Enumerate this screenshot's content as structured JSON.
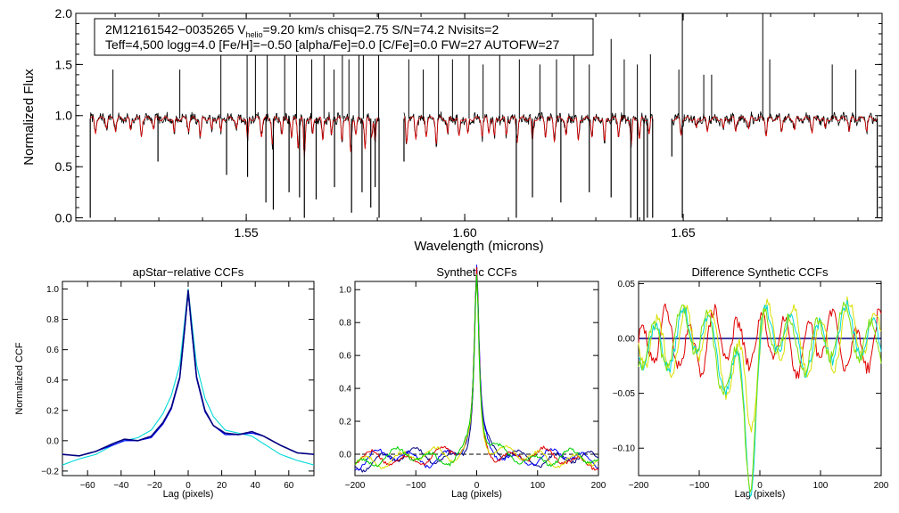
{
  "colors": {
    "black": "#000000",
    "red": "#e00000",
    "cyan": "#00d8d8",
    "navy": "#000080",
    "blue": "#0000ff",
    "green": "#00d000",
    "yellow": "#d8e000",
    "lime": "#80e000",
    "axis": "#000000"
  },
  "chart_data": [
    {
      "id": "spectrum",
      "type": "line",
      "title": "",
      "xlabel": "Wavelength (microns)",
      "ylabel": "Normalized Flux",
      "xlim": [
        1.511,
        1.6955
      ],
      "ylim": [
        -0.03,
        2.0
      ],
      "xticks": [
        1.55,
        1.6,
        1.65
      ],
      "xtick_labels": [
        "1.55",
        "1.60",
        "1.65"
      ],
      "yticks": [
        0.0,
        0.5,
        1.0,
        1.5,
        2.0
      ],
      "ytick_labels": [
        "0.0",
        "0.5",
        "1.0",
        "1.5",
        "2.0"
      ],
      "annotation": {
        "line1_parts": [
          "2M12161542−0035265  V",
          "helio",
          "=9.20 km/s  chisq=2.75  S/N=74.2  Nvisits=2"
        ],
        "line2": "Teff=4,500 logg=4.0 [Fe/H]=−0.50 [alpha/Fe]=0.0 [C/Fe]=0.0 FW=27 AUTOFW=27"
      },
      "chips_microns": [
        [
          1.5143,
          1.5804
        ],
        [
          1.5861,
          1.643
        ],
        [
          1.6474,
          1.6944
        ]
      ],
      "continuum": 0.97,
      "series": [
        {
          "name": "observed spectrum",
          "color": "black"
        },
        {
          "name": "synthetic model",
          "color": "red"
        }
      ],
      "absorption_lines": [
        [
          1.5155,
          0.25
        ],
        [
          1.518,
          0.14
        ],
        [
          1.5201,
          0.2
        ],
        [
          1.5235,
          0.22
        ],
        [
          1.526,
          0.3
        ],
        [
          1.5288,
          0.18
        ],
        [
          1.5335,
          0.28
        ],
        [
          1.5368,
          0.2
        ],
        [
          1.5395,
          0.34
        ],
        [
          1.5421,
          0.22
        ],
        [
          1.5442,
          0.26
        ],
        [
          1.5478,
          0.18
        ],
        [
          1.5503,
          0.4
        ],
        [
          1.5535,
          0.3
        ],
        [
          1.556,
          0.45
        ],
        [
          1.5582,
          0.28
        ],
        [
          1.5604,
          0.35
        ],
        [
          1.5619,
          0.5
        ],
        [
          1.5633,
          0.7
        ],
        [
          1.5652,
          0.3
        ],
        [
          1.5675,
          0.4
        ],
        [
          1.5695,
          0.32
        ],
        [
          1.5719,
          0.38
        ],
        [
          1.5739,
          0.6
        ],
        [
          1.5751,
          0.3
        ],
        [
          1.5772,
          0.55
        ],
        [
          1.5787,
          0.3
        ],
        [
          1.5795,
          0.45
        ],
        [
          1.5867,
          0.42
        ],
        [
          1.5888,
          0.35
        ],
        [
          1.5912,
          0.3
        ],
        [
          1.5935,
          0.42
        ],
        [
          1.5961,
          0.28
        ],
        [
          1.5987,
          0.35
        ],
        [
          1.6007,
          0.3
        ],
        [
          1.604,
          0.3
        ],
        [
          1.6055,
          0.25
        ],
        [
          1.6068,
          0.34
        ],
        [
          1.6095,
          0.3
        ],
        [
          1.612,
          0.4
        ],
        [
          1.6155,
          0.42
        ],
        [
          1.6185,
          0.3
        ],
        [
          1.6205,
          0.38
        ],
        [
          1.6232,
          0.3
        ],
        [
          1.626,
          0.42
        ],
        [
          1.6291,
          0.3
        ],
        [
          1.632,
          0.44
        ],
        [
          1.6352,
          0.3
        ],
        [
          1.6381,
          0.5
        ],
        [
          1.64,
          0.38
        ],
        [
          1.6422,
          0.3
        ],
        [
          1.6495,
          0.28
        ],
        [
          1.653,
          0.2
        ],
        [
          1.6555,
          0.25
        ],
        [
          1.6592,
          0.2
        ],
        [
          1.662,
          0.22
        ],
        [
          1.665,
          0.18
        ],
        [
          1.669,
          0.3
        ],
        [
          1.6725,
          0.22
        ],
        [
          1.6755,
          0.2
        ],
        [
          1.6795,
          0.24
        ],
        [
          1.6825,
          0.2
        ],
        [
          1.688,
          0.22
        ],
        [
          1.692,
          0.2
        ]
      ],
      "spikes_up": [
        [
          1.5195,
          1.45
        ],
        [
          1.5348,
          1.45
        ],
        [
          1.5442,
          1.6
        ],
        [
          1.5502,
          1.6
        ],
        [
          1.5521,
          1.9
        ],
        [
          1.5548,
          1.65
        ],
        [
          1.5588,
          1.7
        ],
        [
          1.5615,
          1.6
        ],
        [
          1.565,
          1.55
        ],
        [
          1.5678,
          1.75
        ],
        [
          1.5701,
          1.45
        ],
        [
          1.572,
          1.6
        ],
        [
          1.5735,
          1.55
        ],
        [
          1.5758,
          1.6
        ],
        [
          1.5768,
          1.7
        ],
        [
          1.5803,
          2.0
        ],
        [
          1.5872,
          1.55
        ],
        [
          1.5905,
          1.45
        ],
        [
          1.594,
          1.6
        ],
        [
          1.5972,
          1.55
        ],
        [
          1.601,
          1.8
        ],
        [
          1.6042,
          1.5
        ],
        [
          1.608,
          1.6
        ],
        [
          1.6125,
          1.55
        ],
        [
          1.6172,
          1.5
        ],
        [
          1.621,
          1.55
        ],
        [
          1.625,
          1.6
        ],
        [
          1.6285,
          1.5
        ],
        [
          1.6335,
          1.75
        ],
        [
          1.6365,
          1.55
        ],
        [
          1.6395,
          1.5
        ],
        [
          1.6425,
          1.6
        ],
        [
          1.649,
          1.45
        ],
        [
          1.6498,
          2.0
        ],
        [
          1.6547,
          1.4
        ],
        [
          1.6565,
          1.4
        ],
        [
          1.6682,
          2.0
        ],
        [
          1.6698,
          1.55
        ],
        [
          1.6841,
          1.5
        ],
        [
          1.6895,
          1.45
        ]
      ],
      "spikes_down": [
        [
          1.5143,
          0.0
        ],
        [
          1.5298,
          0.55
        ],
        [
          1.5455,
          0.42
        ],
        [
          1.5503,
          0.4
        ],
        [
          1.5545,
          0.15
        ],
        [
          1.5562,
          0.08
        ],
        [
          1.5598,
          0.25
        ],
        [
          1.5622,
          0.2
        ],
        [
          1.5633,
          0.0
        ],
        [
          1.566,
          0.18
        ],
        [
          1.5702,
          0.3
        ],
        [
          1.5741,
          0.05
        ],
        [
          1.5765,
          0.25
        ],
        [
          1.5785,
          0.1
        ],
        [
          1.5795,
          0.3
        ],
        [
          1.5804,
          0.0
        ],
        [
          1.5861,
          0.55
        ],
        [
          1.6118,
          0.0
        ],
        [
          1.6155,
          0.2
        ],
        [
          1.622,
          0.15
        ],
        [
          1.6285,
          0.25
        ],
        [
          1.6335,
          0.2
        ],
        [
          1.638,
          0.0
        ],
        [
          1.6395,
          -0.03
        ],
        [
          1.641,
          -0.03
        ],
        [
          1.6418,
          0.0
        ],
        [
          1.643,
          0.0
        ],
        [
          1.6474,
          0.6
        ],
        [
          1.6498,
          0.0
        ],
        [
          1.6944,
          0.0
        ]
      ]
    },
    {
      "id": "apstar-ccf",
      "type": "line",
      "title": "apStar−relative CCFs",
      "xlabel": "Lag (pixels)",
      "ylabel": "Normalized CCF",
      "xlim": [
        -75,
        75
      ],
      "ylim": [
        -0.23,
        1.05
      ],
      "xticks": [
        -60,
        -40,
        -20,
        0,
        20,
        40,
        60
      ],
      "xtick_labels": [
        "−60",
        "−40",
        "−20",
        "0",
        "20",
        "40",
        "60"
      ],
      "yticks": [
        -0.2,
        0.0,
        0.2,
        0.4,
        0.6,
        0.8,
        1.0
      ],
      "ytick_labels": [
        "−0.2",
        "0.0",
        "0.2",
        "0.4",
        "0.6",
        "0.8",
        "1.0"
      ],
      "series": [
        {
          "name": "visit 1",
          "color": "navy",
          "x": [
            -75,
            -65,
            -55,
            -45,
            -38,
            -30,
            -22,
            -15,
            -10,
            -5,
            -2,
            0,
            2,
            5,
            10,
            15,
            22,
            30,
            38,
            45,
            55,
            65,
            75
          ],
          "y": [
            -0.09,
            -0.1,
            -0.07,
            -0.02,
            0.01,
            0.0,
            0.03,
            0.12,
            0.22,
            0.42,
            0.75,
            0.99,
            0.75,
            0.42,
            0.2,
            0.1,
            0.05,
            0.04,
            0.06,
            0.03,
            -0.03,
            -0.08,
            -0.09
          ]
        },
        {
          "name": "visit 2",
          "color": "blue",
          "x": [
            -75,
            -65,
            -55,
            -45,
            -38,
            -30,
            -22,
            -15,
            -10,
            -5,
            -2,
            0,
            2,
            5,
            10,
            15,
            22,
            30,
            38,
            45,
            55,
            65,
            75
          ],
          "y": [
            -0.09,
            -0.1,
            -0.07,
            -0.03,
            0.0,
            0.0,
            0.02,
            0.11,
            0.21,
            0.41,
            0.74,
            0.98,
            0.74,
            0.41,
            0.19,
            0.1,
            0.04,
            0.04,
            0.05,
            0.03,
            -0.03,
            -0.08,
            -0.09
          ]
        },
        {
          "name": "combined",
          "color": "cyan",
          "x": [
            -75,
            -65,
            -55,
            -45,
            -38,
            -30,
            -22,
            -15,
            -10,
            -5,
            -2,
            0,
            2,
            5,
            10,
            15,
            22,
            30,
            38,
            45,
            55,
            65,
            75
          ],
          "y": [
            -0.16,
            -0.12,
            -0.09,
            -0.03,
            0.0,
            0.02,
            0.07,
            0.18,
            0.3,
            0.5,
            0.8,
            1.0,
            0.8,
            0.5,
            0.28,
            0.16,
            0.07,
            0.05,
            0.03,
            -0.02,
            -0.09,
            -0.13,
            -0.16
          ]
        }
      ]
    },
    {
      "id": "synthetic-ccf",
      "type": "line",
      "title": "Synthetic CCFs",
      "xlabel": "Lag (pixels)",
      "ylabel": "",
      "xlim": [
        -200,
        200
      ],
      "ylim": [
        -0.13,
        1.05
      ],
      "xticks": [
        -200,
        -100,
        0,
        100,
        200
      ],
      "xtick_labels": [
        "−200",
        "−100",
        "0",
        "100",
        "200"
      ],
      "yticks": [
        0.0,
        0.2,
        0.4,
        0.6,
        0.8,
        1.0
      ],
      "ytick_labels": [
        "0.0",
        "0.2",
        "0.4",
        "0.6",
        "0.8",
        "1.0"
      ],
      "reference_line": 0.0,
      "series": [
        {
          "name": "visit 1",
          "color": "navy"
        },
        {
          "name": "visit 2",
          "color": "blue"
        },
        {
          "name": "template red",
          "color": "red"
        },
        {
          "name": "template yellow",
          "color": "yellow"
        },
        {
          "name": "template green",
          "color": "green"
        }
      ],
      "peak": 1.0,
      "peak_center": 0
    },
    {
      "id": "difference-ccf",
      "type": "line",
      "title": "Difference Synthetic CCFs",
      "xlabel": "Lag (pixels)",
      "ylabel": "",
      "xlim": [
        -200,
        200
      ],
      "ylim": [
        -0.125,
        0.052
      ],
      "xticks": [
        -200,
        -100,
        0,
        100,
        200
      ],
      "xtick_labels": [
        "−200",
        "−100",
        "0",
        "100",
        "200"
      ],
      "yticks": [
        -0.1,
        -0.05,
        0.0,
        0.05
      ],
      "ytick_labels": [
        "−0.10",
        "−0.05",
        "0.00",
        "0.05"
      ],
      "series": [
        {
          "name": "reference",
          "color": "navy"
        },
        {
          "name": "red residual",
          "color": "red"
        },
        {
          "name": "yellow residual",
          "color": "yellow"
        },
        {
          "name": "cyan residual",
          "color": "cyan"
        },
        {
          "name": "green residual",
          "color": "lime"
        }
      ],
      "trough": {
        "x": -15,
        "y": -0.115
      }
    }
  ]
}
